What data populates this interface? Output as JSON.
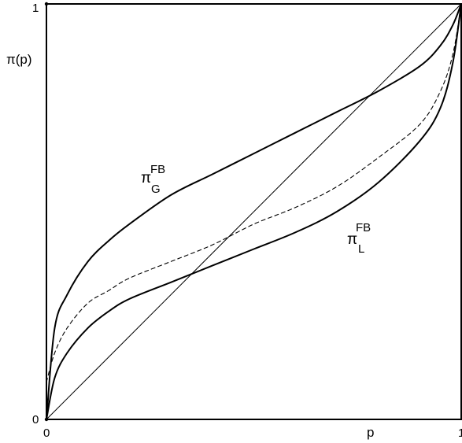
{
  "chart_data": {
    "type": "line",
    "title": "",
    "xlabel": "p",
    "ylabel": "π(p)",
    "xlim": [
      0,
      1
    ],
    "ylim": [
      0,
      1
    ],
    "x_ticks": [
      "0",
      "1"
    ],
    "y_ticks": [
      "0",
      "1"
    ],
    "grid": false,
    "series": [
      {
        "key": "diagonal",
        "style": "thin",
        "x": [
          0,
          1
        ],
        "y": [
          0,
          1
        ]
      },
      {
        "key": "pi_G",
        "style": "bold",
        "x": [
          0,
          0.02,
          0.05,
          0.1,
          0.15,
          0.2,
          0.3,
          0.4,
          0.5,
          0.6,
          0.7,
          0.8,
          0.9,
          0.95,
          0.98,
          1.0
        ],
        "y": [
          0,
          0.22,
          0.3,
          0.38,
          0.43,
          0.47,
          0.54,
          0.59,
          0.64,
          0.69,
          0.74,
          0.79,
          0.85,
          0.9,
          0.95,
          1.0
        ]
      },
      {
        "key": "pi_L",
        "style": "bold",
        "x": [
          0,
          0.02,
          0.05,
          0.1,
          0.15,
          0.2,
          0.3,
          0.4,
          0.5,
          0.6,
          0.7,
          0.8,
          0.9,
          0.95,
          0.98,
          1.0
        ],
        "y": [
          0,
          0.1,
          0.16,
          0.22,
          0.26,
          0.29,
          0.33,
          0.37,
          0.41,
          0.45,
          0.5,
          0.57,
          0.67,
          0.75,
          0.86,
          1.0
        ]
      },
      {
        "key": "dashed",
        "style": "dashed",
        "x": [
          0,
          0.02,
          0.05,
          0.1,
          0.15,
          0.2,
          0.3,
          0.4,
          0.5,
          0.6,
          0.7,
          0.8,
          0.9,
          0.95,
          0.98,
          1.0
        ],
        "y": [
          0.09,
          0.16,
          0.22,
          0.28,
          0.31,
          0.34,
          0.38,
          0.42,
          0.47,
          0.51,
          0.56,
          0.63,
          0.71,
          0.79,
          0.88,
          1.0
        ]
      }
    ],
    "annotations": [
      {
        "key": "pi_G_label",
        "base": "π",
        "sup": "FB",
        "sub": "G",
        "at": [
          0.42,
          0.6
        ]
      },
      {
        "key": "pi_L_label",
        "base": "π",
        "sup": "FB",
        "sub": "L",
        "at": [
          0.72,
          0.41
        ]
      }
    ]
  }
}
